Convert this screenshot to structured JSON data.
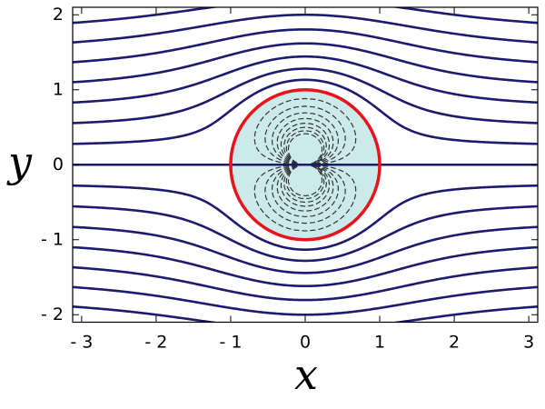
{
  "chart_data": {
    "type": "streamlines",
    "xlabel": "x",
    "ylabel": "y",
    "xlim": [
      -3.12,
      3.12
    ],
    "ylim": [
      -2.1,
      2.1
    ],
    "xticks": [
      {
        "value": -3,
        "label": "- 3"
      },
      {
        "value": -2,
        "label": "- 2"
      },
      {
        "value": -1,
        "label": "- 1"
      },
      0,
      1,
      2,
      3
    ],
    "yticks": [
      {
        "value": -2,
        "label": "- 2"
      },
      {
        "value": -1,
        "label": "- 1"
      },
      0,
      1,
      2
    ],
    "cylinder_radius": 1,
    "stream_levels": [
      -1.75,
      -1.5,
      -1.25,
      -1,
      -0.75,
      -0.5,
      -0.25,
      0,
      0.25,
      0.5,
      0.75,
      1,
      1.25,
      1.5,
      1.75
    ],
    "inner_levels": [
      -2,
      -1.75,
      -1.5,
      -1.25,
      -1,
      -0.75,
      -0.5,
      -0.25,
      0.25,
      0.5,
      0.75,
      1,
      1.25,
      1.5,
      1.75,
      2
    ],
    "stream_color": "#1c1c6e",
    "inner_color": "#333333",
    "cylinder_color": "#e8141b",
    "cylinder_fill": "#cdeaea"
  }
}
